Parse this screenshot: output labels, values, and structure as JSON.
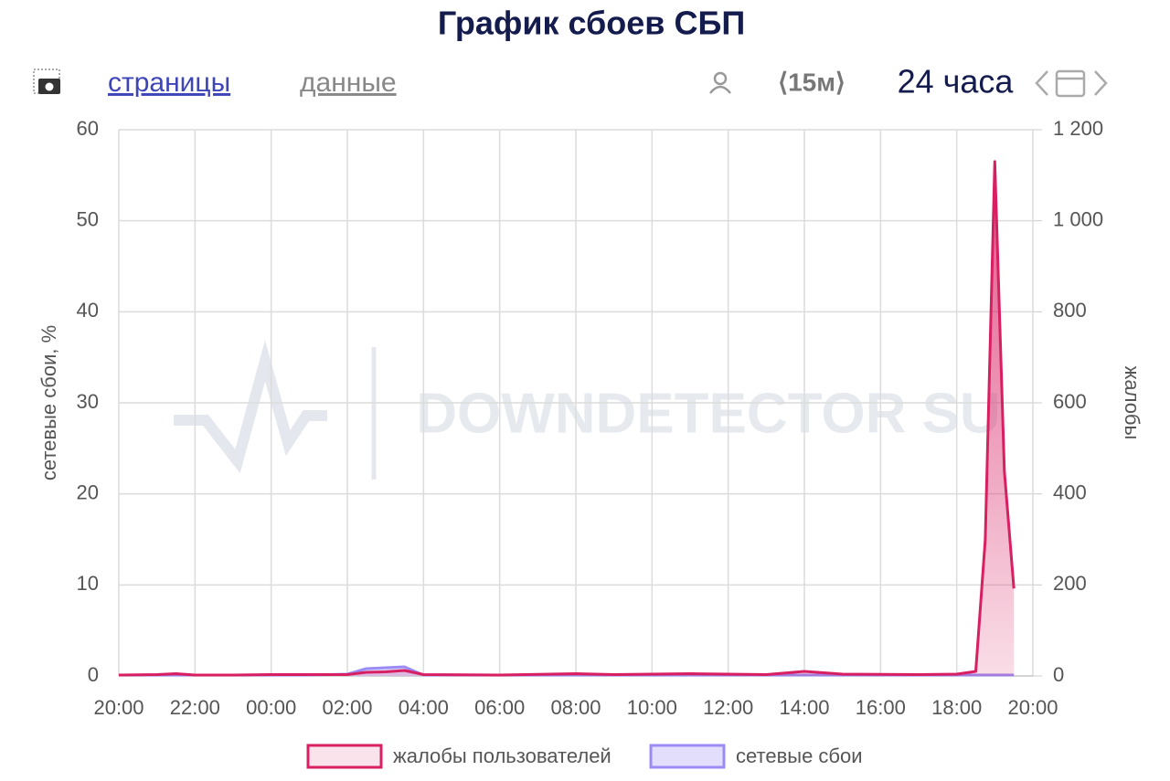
{
  "chart_data": {
    "type": "line",
    "title": "График сбоев СБП",
    "toolbar": {
      "pages": "страницы",
      "data": "данные",
      "interval": "⟨15м⟩",
      "period": "24 часа"
    },
    "watermark": "DOWNDETECTOR SU",
    "ylabel": "сетевые сбои, %",
    "y2label": "жалобы",
    "x": [
      "20:00",
      "21:00",
      "21:30",
      "22:00",
      "23:00",
      "00:00",
      "01:00",
      "02:00",
      "02:30",
      "03:00",
      "03:30",
      "04:00",
      "06:00",
      "08:00",
      "09:00",
      "11:00",
      "13:00",
      "14:00",
      "15:00",
      "17:00",
      "18:00",
      "18:30",
      "18:45",
      "19:00",
      "19:15",
      "19:30"
    ],
    "series": [
      {
        "name": "жалобы пользователей",
        "color": "#d81f61",
        "axis": "y2",
        "values": [
          2,
          3,
          5,
          2,
          2,
          3,
          3,
          3,
          8,
          9,
          12,
          3,
          2,
          5,
          3,
          5,
          3,
          10,
          4,
          3,
          4,
          10,
          300,
          1130,
          450,
          192
        ]
      },
      {
        "name": "сетевые сбои",
        "color": "#9a8cf4",
        "values": [
          0.1,
          0.1,
          0.1,
          0.1,
          0.1,
          0.1,
          0.1,
          0.2,
          0.8,
          0.9,
          1.0,
          0.1,
          0.1,
          0.1,
          0.1,
          0.1,
          0.1,
          0.1,
          0.1,
          0.1,
          0.1,
          0.1,
          0.1,
          0.1,
          0.1,
          0.1
        ]
      }
    ],
    "xticks": [
      "20:00",
      "22:00",
      "00:00",
      "02:00",
      "04:00",
      "06:00",
      "08:00",
      "10:00",
      "12:00",
      "14:00",
      "16:00",
      "18:00",
      "20:00"
    ],
    "ylim": [
      0,
      60
    ],
    "yticks": [
      0,
      10,
      20,
      30,
      40,
      50,
      60
    ],
    "y2lim": [
      0,
      1200
    ],
    "y2ticks": [
      0,
      200,
      400,
      600,
      800,
      {
        "value": 1000,
        "label": "1 000"
      },
      {
        "value": 1200,
        "label": "1 200"
      }
    ],
    "grid": true
  }
}
